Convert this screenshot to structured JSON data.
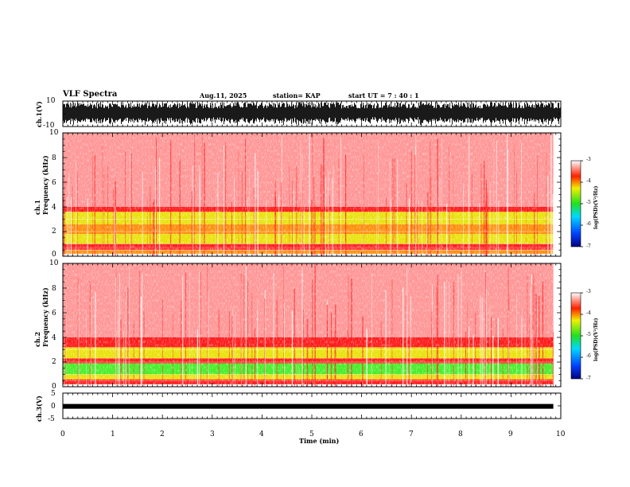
{
  "header": {
    "title": "VLF Spectra",
    "date": "Aug.11, 2025",
    "station": "station= KAP",
    "start": "start  UT  =   7 : 40 : 1"
  },
  "colors": {
    "background": "#ffffff",
    "axis": "#000000",
    "spectrum_red": "#ff1a1a",
    "spectrum_yellow": "#f0e000",
    "spectrum_green": "#40ee20"
  },
  "chart_data": [
    {
      "type": "line",
      "name": "ch1-waveform",
      "ylabel": "ch.1(V)",
      "ylim": [
        -10,
        10
      ],
      "yticks": [
        "10",
        "-10"
      ],
      "x": [
        0,
        10
      ],
      "description_series": "dense voltage waveform filling most of the ±10 V range"
    },
    {
      "type": "heatmap",
      "name": "ch1-spectrogram",
      "ylabel": "ch.1\nFrequency (kHz)",
      "ylim": [
        0,
        10
      ],
      "yticks": [
        "0",
        "2",
        "4",
        "6",
        "8",
        "10"
      ],
      "xlim": [
        0,
        9.85
      ],
      "bands": [
        {
          "from_khz": 0.2,
          "to_khz": 0.5,
          "level": -3.9
        },
        {
          "from_khz": 0.5,
          "to_khz": 0.75,
          "level": -3.3
        },
        {
          "from_khz": 0.75,
          "to_khz": 1.0,
          "level": -3.6
        },
        {
          "from_khz": 1.0,
          "to_khz": 1.8,
          "level": -4.2
        },
        {
          "from_khz": 1.8,
          "to_khz": 2.6,
          "level": -3.9
        },
        {
          "from_khz": 2.6,
          "to_khz": 3.6,
          "level": -4.2
        },
        {
          "from_khz": 3.6,
          "to_khz": 4.0,
          "level": -3.6
        },
        {
          "from_khz": 4.0,
          "to_khz": 10.0,
          "level": -3.1
        }
      ],
      "colorbar": {
        "label": "log(PSD)(V²/Hz)",
        "range": [
          -7,
          -3
        ],
        "ticks": [
          "-3",
          "-4",
          "-5",
          "-6",
          "-7"
        ]
      }
    },
    {
      "type": "heatmap",
      "name": "ch2-spectrogram",
      "ylabel": "ch.2\nFrequency (kHz)",
      "ylim": [
        0,
        10
      ],
      "yticks": [
        "0",
        "2",
        "4",
        "6",
        "8",
        "10"
      ],
      "xlim": [
        0,
        9.85
      ],
      "bands": [
        {
          "from_khz": 0.2,
          "to_khz": 0.6,
          "level": -3.6
        },
        {
          "from_khz": 0.6,
          "to_khz": 1.0,
          "level": -4.3
        },
        {
          "from_khz": 1.0,
          "to_khz": 1.9,
          "level": -4.6
        },
        {
          "from_khz": 1.9,
          "to_khz": 2.3,
          "level": -3.5
        },
        {
          "from_khz": 2.3,
          "to_khz": 3.2,
          "level": -4.3
        },
        {
          "from_khz": 3.2,
          "to_khz": 4.0,
          "level": -3.6
        },
        {
          "from_khz": 4.0,
          "to_khz": 10.0,
          "level": -3.1
        }
      ],
      "colorbar": {
        "label": "log(PSD)(V²/Hz)",
        "range": [
          -7,
          -3
        ],
        "ticks": [
          "-3",
          "-4",
          "-5",
          "-6",
          "-7"
        ]
      }
    },
    {
      "type": "line",
      "name": "ch3-waveform",
      "ylabel": "ch.3(V)",
      "ylim": [
        -5,
        5
      ],
      "yticks": [
        "5",
        "0",
        "-5"
      ],
      "level": -0.2,
      "xlabel": "Time (min)",
      "xlim": [
        0,
        10
      ],
      "xticks": [
        "0",
        "1",
        "2",
        "3",
        "4",
        "5",
        "6",
        "7",
        "8",
        "9",
        "10"
      ]
    }
  ]
}
